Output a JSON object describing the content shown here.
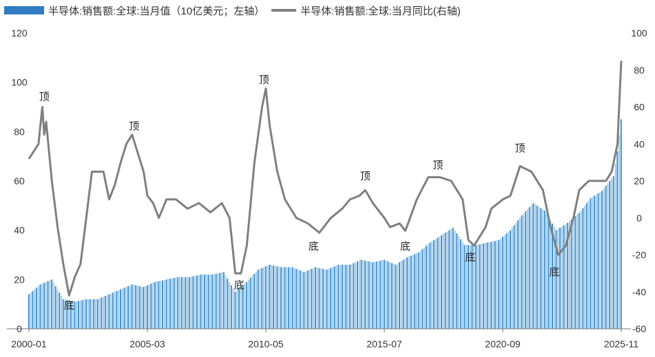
{
  "chart_data": {
    "type": "bar+line",
    "legend": [
      {
        "name": "半导体:销售额:全球:当月值（10亿美元；左轴）",
        "kind": "bar",
        "color": "#2f7cc0"
      },
      {
        "name": "半导体:销售额:全球:当月同比(右轴)",
        "kind": "line",
        "color": "#7f7f7f"
      }
    ],
    "x_tick_labels": [
      "2000-01",
      "2005-03",
      "2010-05",
      "2015-07",
      "2020-09",
      "2025-11"
    ],
    "x_range": [
      "2000-01",
      "2025-11"
    ],
    "left_axis": {
      "range": [
        0,
        120
      ],
      "ticks": [
        "0",
        "20",
        "40",
        "60",
        "80",
        "100",
        "120"
      ]
    },
    "right_axis": {
      "range": [
        -60,
        100
      ],
      "ticks": [
        "-60",
        "-40",
        "-20",
        "0",
        "20",
        "40",
        "60",
        "80",
        "100"
      ]
    },
    "grid": false,
    "legend_position": "top-left",
    "bar_series": {
      "name": "半导体:销售额:全球:当月值（10亿美元；左轴）",
      "points": [
        [
          "2000-01",
          14
        ],
        [
          "2000-07",
          18
        ],
        [
          "2001-01",
          20
        ],
        [
          "2001-07",
          12
        ],
        [
          "2002-01",
          11
        ],
        [
          "2002-07",
          12
        ],
        [
          "2003-01",
          12
        ],
        [
          "2003-07",
          14
        ],
        [
          "2004-01",
          16
        ],
        [
          "2004-07",
          18
        ],
        [
          "2005-01",
          17
        ],
        [
          "2005-07",
          19
        ],
        [
          "2006-01",
          20
        ],
        [
          "2006-07",
          21
        ],
        [
          "2007-01",
          21
        ],
        [
          "2007-07",
          22
        ],
        [
          "2008-01",
          22
        ],
        [
          "2008-07",
          23
        ],
        [
          "2009-01",
          15
        ],
        [
          "2009-07",
          19
        ],
        [
          "2010-01",
          24
        ],
        [
          "2010-07",
          26
        ],
        [
          "2011-01",
          25
        ],
        [
          "2011-07",
          25
        ],
        [
          "2012-01",
          23
        ],
        [
          "2012-07",
          25
        ],
        [
          "2013-01",
          24
        ],
        [
          "2013-07",
          26
        ],
        [
          "2014-01",
          26
        ],
        [
          "2014-07",
          28
        ],
        [
          "2015-01",
          27
        ],
        [
          "2015-07",
          28
        ],
        [
          "2016-01",
          26
        ],
        [
          "2016-07",
          29
        ],
        [
          "2017-01",
          31
        ],
        [
          "2017-07",
          35
        ],
        [
          "2018-01",
          38
        ],
        [
          "2018-07",
          41
        ],
        [
          "2019-01",
          34
        ],
        [
          "2019-07",
          34
        ],
        [
          "2020-01",
          35
        ],
        [
          "2020-07",
          36
        ],
        [
          "2021-01",
          40
        ],
        [
          "2021-07",
          46
        ],
        [
          "2022-01",
          51
        ],
        [
          "2022-07",
          48
        ],
        [
          "2023-01",
          40
        ],
        [
          "2023-07",
          43
        ],
        [
          "2024-01",
          47
        ],
        [
          "2024-07",
          53
        ],
        [
          "2025-01",
          56
        ],
        [
          "2025-07",
          62
        ],
        [
          "2025-09",
          72
        ],
        [
          "2025-11",
          85
        ]
      ]
    },
    "line_series": {
      "name": "半导体:销售额:全球:当月同比(右轴)",
      "points": [
        [
          "2000-01",
          32
        ],
        [
          "2000-06",
          40
        ],
        [
          "2000-08",
          60
        ],
        [
          "2000-09",
          45
        ],
        [
          "2000-10",
          52
        ],
        [
          "2001-01",
          20
        ],
        [
          "2001-04",
          -5
        ],
        [
          "2001-07",
          -25
        ],
        [
          "2001-10",
          -42
        ],
        [
          "2002-01",
          -32
        ],
        [
          "2002-04",
          -25
        ],
        [
          "2002-07",
          0
        ],
        [
          "2002-10",
          25
        ],
        [
          "2003-04",
          25
        ],
        [
          "2003-07",
          10
        ],
        [
          "2003-10",
          18
        ],
        [
          "2004-01",
          30
        ],
        [
          "2004-04",
          40
        ],
        [
          "2004-07",
          45
        ],
        [
          "2004-10",
          35
        ],
        [
          "2005-01",
          25
        ],
        [
          "2005-03",
          12
        ],
        [
          "2005-06",
          8
        ],
        [
          "2005-09",
          0
        ],
        [
          "2006-01",
          10
        ],
        [
          "2006-06",
          10
        ],
        [
          "2006-12",
          5
        ],
        [
          "2007-06",
          8
        ],
        [
          "2007-12",
          3
        ],
        [
          "2008-06",
          8
        ],
        [
          "2008-10",
          0
        ],
        [
          "2009-01",
          -30
        ],
        [
          "2009-04",
          -30
        ],
        [
          "2009-07",
          -15
        ],
        [
          "2009-11",
          30
        ],
        [
          "2010-03",
          60
        ],
        [
          "2010-05",
          70
        ],
        [
          "2010-07",
          50
        ],
        [
          "2010-11",
          25
        ],
        [
          "2011-03",
          10
        ],
        [
          "2011-09",
          0
        ],
        [
          "2012-03",
          -3
        ],
        [
          "2012-09",
          -8
        ],
        [
          "2013-03",
          0
        ],
        [
          "2013-09",
          5
        ],
        [
          "2014-01",
          10
        ],
        [
          "2014-06",
          12
        ],
        [
          "2014-09",
          15
        ],
        [
          "2015-01",
          8
        ],
        [
          "2015-07",
          0
        ],
        [
          "2015-10",
          -5
        ],
        [
          "2016-03",
          -3
        ],
        [
          "2016-06",
          -7
        ],
        [
          "2016-12",
          10
        ],
        [
          "2017-06",
          22
        ],
        [
          "2017-12",
          22
        ],
        [
          "2018-06",
          20
        ],
        [
          "2018-12",
          10
        ],
        [
          "2019-03",
          -12
        ],
        [
          "2019-06",
          -15
        ],
        [
          "2019-12",
          -5
        ],
        [
          "2020-03",
          5
        ],
        [
          "2020-09",
          10
        ],
        [
          "2021-01",
          12
        ],
        [
          "2021-06",
          28
        ],
        [
          "2021-12",
          25
        ],
        [
          "2022-06",
          15
        ],
        [
          "2022-10",
          -5
        ],
        [
          "2023-02",
          -20
        ],
        [
          "2023-06",
          -15
        ],
        [
          "2023-10",
          0
        ],
        [
          "2024-01",
          15
        ],
        [
          "2024-06",
          20
        ],
        [
          "2024-12",
          20
        ],
        [
          "2025-03",
          20
        ],
        [
          "2025-06",
          25
        ],
        [
          "2025-09",
          40
        ],
        [
          "2025-11",
          85
        ]
      ]
    },
    "annotations": [
      {
        "text": "顶",
        "x": "2000-09",
        "axis": "right",
        "y": 66
      },
      {
        "text": "底",
        "x": "2001-10",
        "axis": "right",
        "y": -47
      },
      {
        "text": "顶",
        "x": "2004-08",
        "axis": "right",
        "y": 50
      },
      {
        "text": "底",
        "x": "2009-03",
        "axis": "right",
        "y": -36
      },
      {
        "text": "顶",
        "x": "2010-04",
        "axis": "right",
        "y": 75
      },
      {
        "text": "底",
        "x": "2012-06",
        "axis": "right",
        "y": -15
      },
      {
        "text": "顶",
        "x": "2014-09",
        "axis": "right",
        "y": 23
      },
      {
        "text": "底",
        "x": "2016-06",
        "axis": "right",
        "y": -15
      },
      {
        "text": "顶",
        "x": "2017-11",
        "axis": "right",
        "y": 29
      },
      {
        "text": "底",
        "x": "2019-04",
        "axis": "right",
        "y": -21
      },
      {
        "text": "顶",
        "x": "2021-06",
        "axis": "right",
        "y": 38
      },
      {
        "text": "底",
        "x": "2022-12",
        "axis": "right",
        "y": -29
      }
    ]
  }
}
